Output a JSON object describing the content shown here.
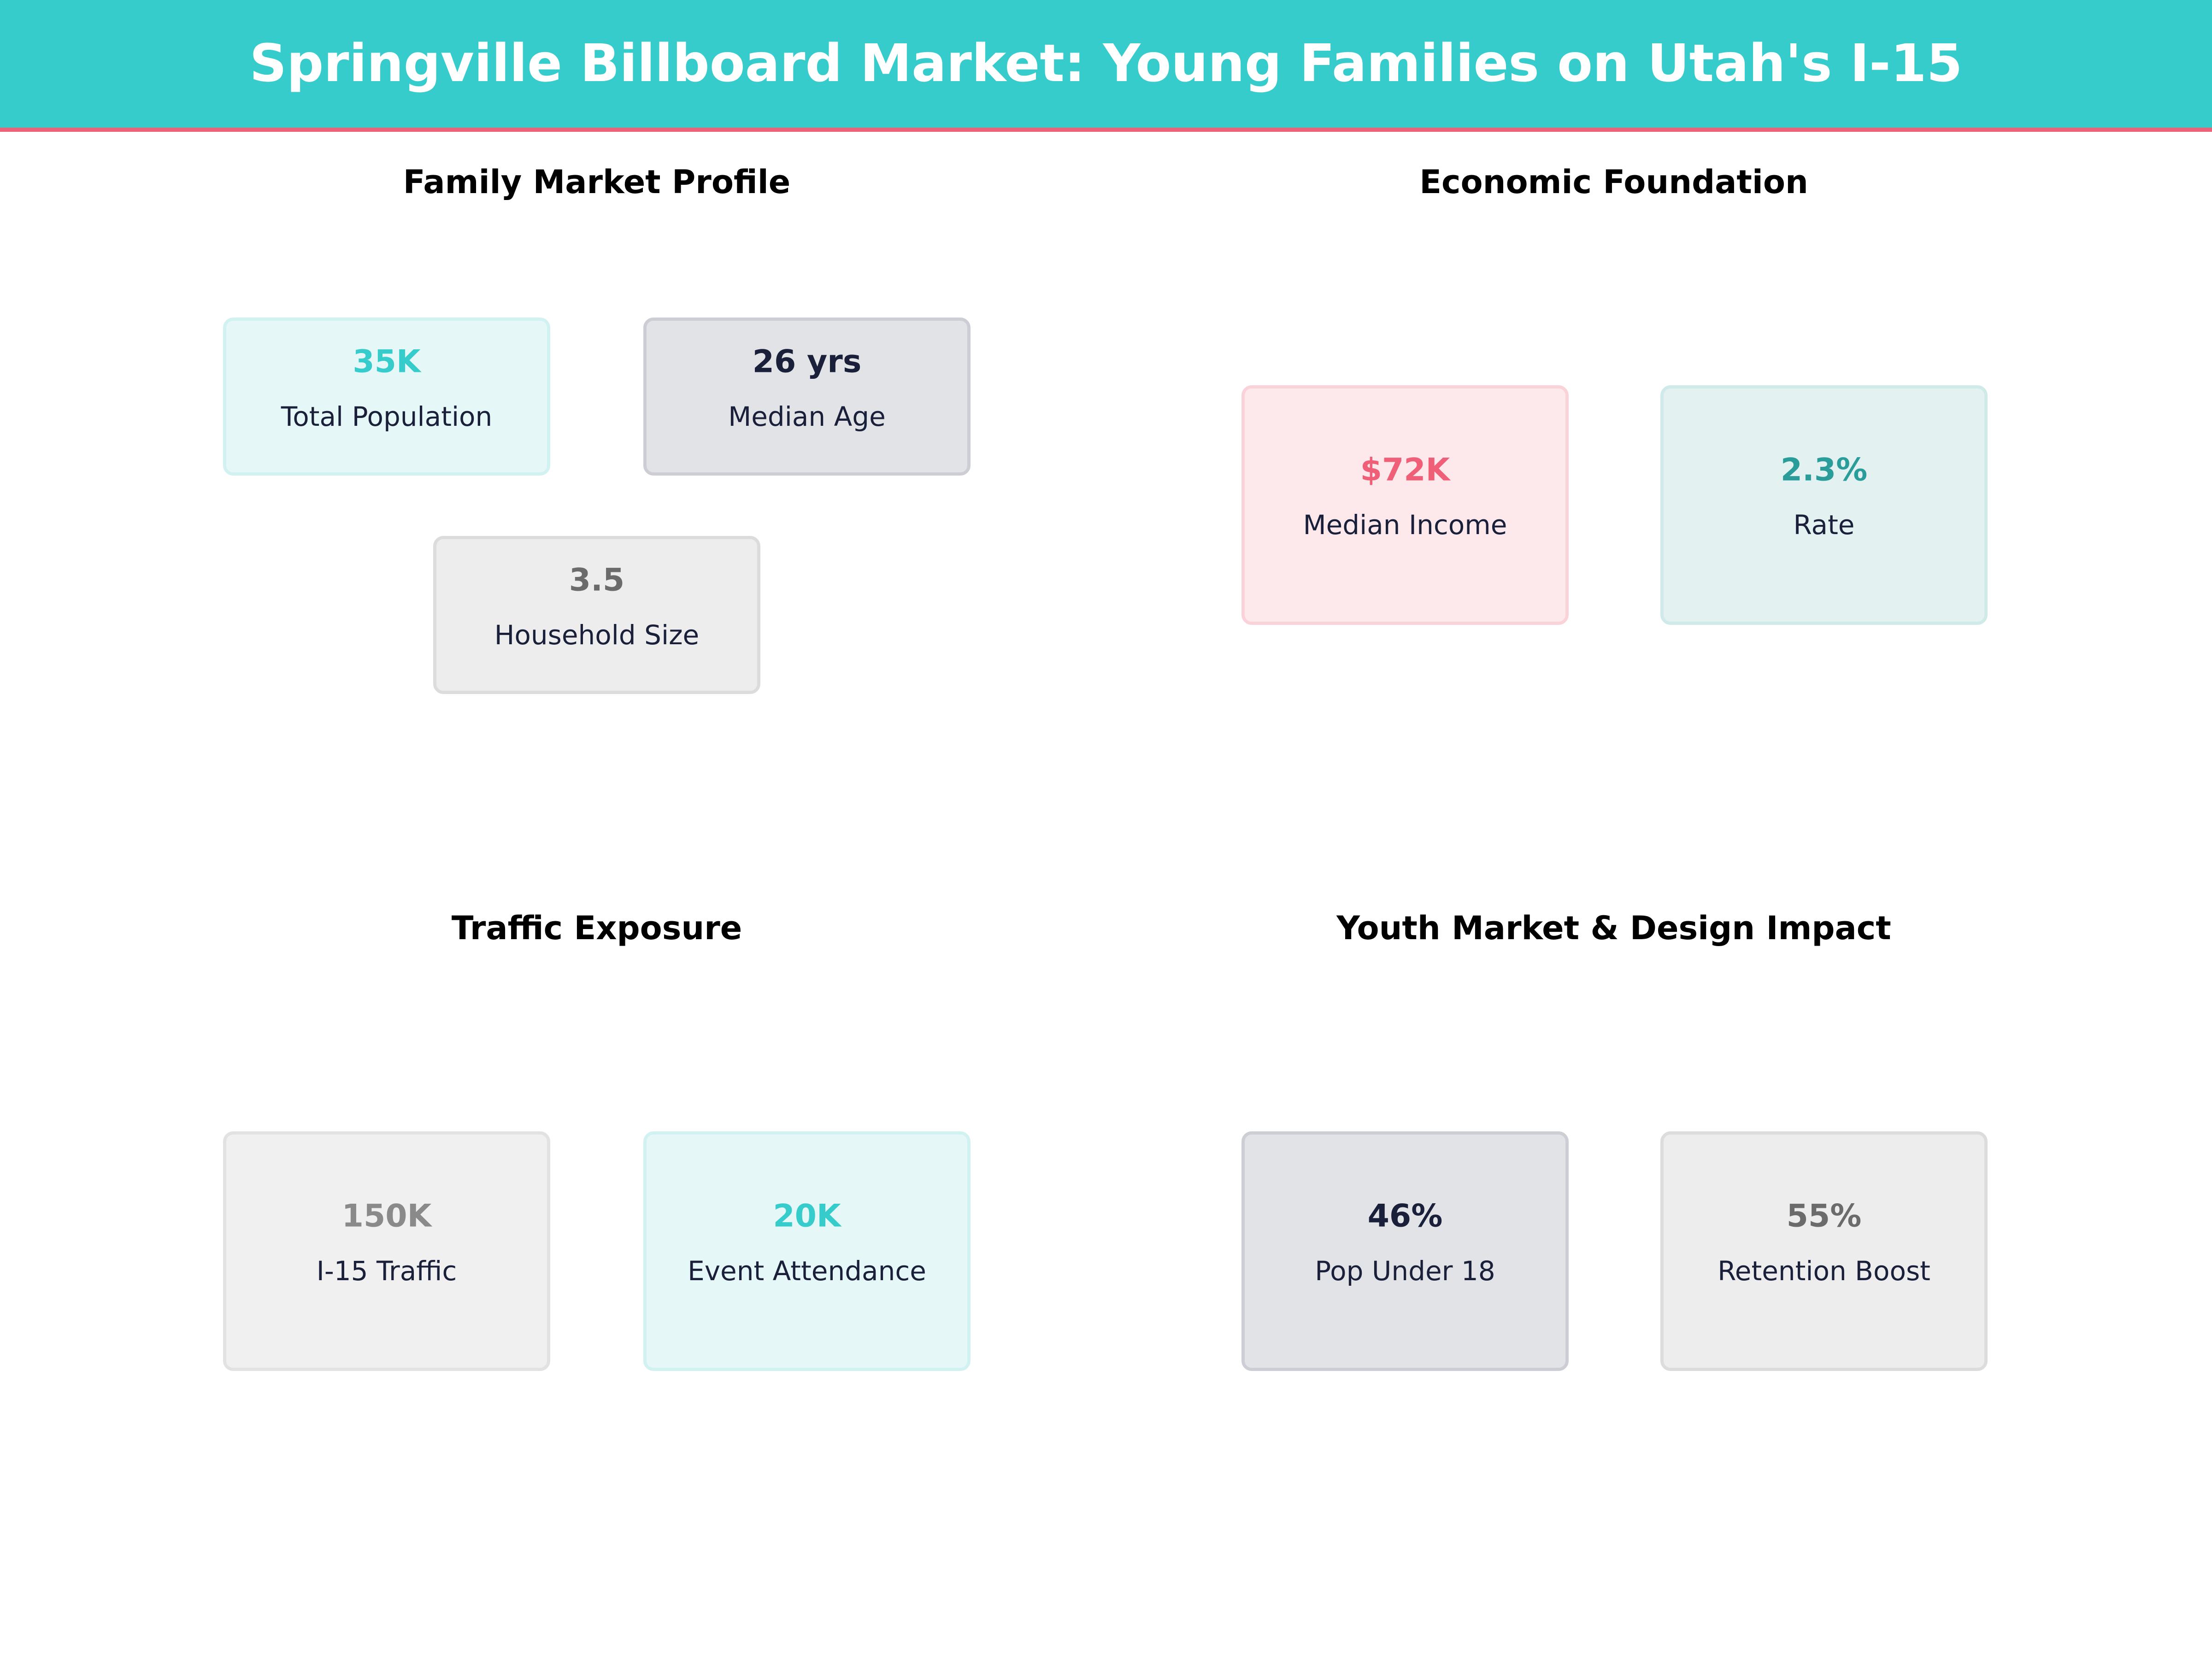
{
  "title": "Springville Billboard Market: Young Families on Utah's I-15",
  "colors": {
    "header": "#36CCCC",
    "accent_line": "#EF6079",
    "teal": "#36CCCC",
    "pink": "#EF5F78",
    "navy": "#1a1f3a",
    "dark_teal": "#2A9D9A",
    "gray": "#6B6B6B"
  },
  "sections": [
    {
      "title": "Family Market Profile",
      "cards": [
        {
          "value": "35K",
          "label": "Total Population"
        },
        {
          "value": "26 yrs",
          "label": "Median Age"
        },
        {
          "value": "3.5",
          "label": "Household Size"
        }
      ]
    },
    {
      "title": "Economic Foundation",
      "cards": [
        {
          "value": "$72K",
          "label": "Median Income"
        },
        {
          "value": "2.3%",
          "label": "Rate"
        }
      ]
    },
    {
      "title": "Traffic Exposure",
      "cards": [
        {
          "value": "150K",
          "label": "I-15 Traffic"
        },
        {
          "value": "20K",
          "label": "Event Attendance"
        }
      ]
    },
    {
      "title": "Youth Market & Design Impact",
      "cards": [
        {
          "value": "46%",
          "label": "Pop Under 18"
        },
        {
          "value": "55%",
          "label": "Retention Boost"
        }
      ]
    }
  ]
}
